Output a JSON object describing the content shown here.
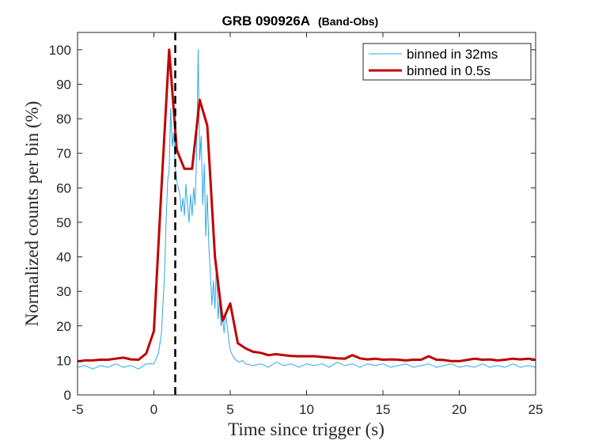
{
  "chart_data": {
    "type": "line",
    "title": "GRB 090926A",
    "subtitle": "(Band-Obs)",
    "xlabel": "Time since trigger (s)",
    "ylabel": "Normalized counts per bin (%)",
    "xlim": [
      -5,
      25
    ],
    "ylim": [
      0,
      105
    ],
    "xticks": [
      -5,
      0,
      5,
      10,
      15,
      20,
      25
    ],
    "yticks": [
      0,
      10,
      20,
      30,
      40,
      50,
      60,
      70,
      80,
      90,
      100
    ],
    "grid": false,
    "legend_position": "top-right",
    "vline": {
      "x": 1.4,
      "style": "dashed",
      "color": "#000000"
    },
    "series": [
      {
        "name": "binned in 32ms",
        "color": "#2EA8E6",
        "width": 1,
        "x": [
          -5,
          -4.5,
          -4,
          -3.5,
          -3,
          -2.5,
          -2,
          -1.5,
          -1,
          -0.5,
          0,
          0.3,
          0.5,
          0.7,
          0.8,
          0.9,
          1.0,
          1.1,
          1.2,
          1.3,
          1.4,
          1.5,
          1.6,
          1.7,
          1.8,
          1.9,
          2.0,
          2.1,
          2.2,
          2.3,
          2.4,
          2.5,
          2.6,
          2.7,
          2.8,
          2.9,
          3.0,
          3.1,
          3.2,
          3.3,
          3.4,
          3.5,
          3.6,
          3.7,
          3.8,
          3.9,
          4.0,
          4.1,
          4.2,
          4.3,
          4.4,
          4.5,
          4.6,
          4.7,
          4.8,
          4.9,
          5.0,
          5.2,
          5.4,
          5.6,
          5.8,
          6,
          6.5,
          7,
          7.5,
          8,
          8.5,
          9,
          9.5,
          10,
          10.5,
          11,
          11.5,
          12,
          12.5,
          13,
          13.5,
          14,
          14.5,
          15,
          15.5,
          16,
          16.5,
          17,
          17.5,
          18,
          18.5,
          19,
          19.5,
          20,
          20.5,
          21,
          21.5,
          22,
          22.5,
          23,
          23.5,
          24,
          24.5,
          25
        ],
        "y": [
          8,
          8.5,
          7.5,
          8.5,
          8,
          9,
          8,
          8.5,
          7.5,
          9,
          9,
          12,
          18,
          35,
          50,
          62,
          65,
          83,
          72,
          76,
          66,
          62,
          60,
          58,
          53,
          57,
          52,
          61,
          55,
          50,
          58,
          52,
          60,
          55,
          70,
          100,
          68,
          75,
          55,
          67,
          46,
          58,
          43,
          35,
          26,
          33,
          25,
          38,
          22,
          28,
          20,
          22,
          18,
          24,
          20,
          16,
          13,
          11,
          10,
          9.5,
          10,
          9,
          8.5,
          9,
          8,
          9.5,
          8.5,
          9,
          8,
          9,
          8.5,
          9,
          8,
          9.5,
          8.5,
          9,
          8,
          9,
          8.5,
          9,
          8,
          8.5,
          9,
          8,
          8.5,
          9,
          8,
          8.5,
          9,
          8,
          8.5,
          8,
          9,
          8,
          8.5,
          8,
          9,
          8,
          8.5,
          8
        ]
      },
      {
        "name": "binned in 0.5s",
        "color": "#C00000",
        "width": 3,
        "x": [
          -5,
          -4.5,
          -4,
          -3.5,
          -3,
          -2.5,
          -2,
          -1.5,
          -1,
          -0.5,
          0,
          0.5,
          1,
          1.5,
          2,
          2.5,
          3,
          3.5,
          4,
          4.5,
          5,
          5.5,
          6,
          6.5,
          7,
          7.5,
          8,
          8.5,
          9,
          9.5,
          10,
          10.5,
          11,
          11.5,
          12,
          12.5,
          13,
          13.5,
          14,
          14.5,
          15,
          15.5,
          16,
          16.5,
          17,
          17.5,
          18,
          18.5,
          19,
          19.5,
          20,
          20.5,
          21,
          21.5,
          22,
          22.5,
          23,
          23.5,
          24,
          24.5,
          25
        ],
        "y": [
          9.7,
          10,
          10,
          10.2,
          10.2,
          10.5,
          10.8,
          10.3,
          10.2,
          12,
          18.5,
          60,
          100,
          71,
          65.5,
          65.5,
          85.5,
          78,
          40,
          21.5,
          26.5,
          15,
          13.5,
          12.5,
          12.2,
          11.5,
          11.8,
          11.5,
          11.3,
          11.2,
          11.2,
          11.2,
          11,
          10.8,
          10.6,
          10.5,
          11.5,
          10.6,
          10.3,
          10.5,
          10.2,
          10.3,
          10.2,
          10,
          10.2,
          10.2,
          11.2,
          10.2,
          10.1,
          9.8,
          9.8,
          10.1,
          10.5,
          10.2,
          10.3,
          10,
          10.2,
          10.5,
          10.3,
          10.5,
          10.2
        ]
      }
    ]
  }
}
